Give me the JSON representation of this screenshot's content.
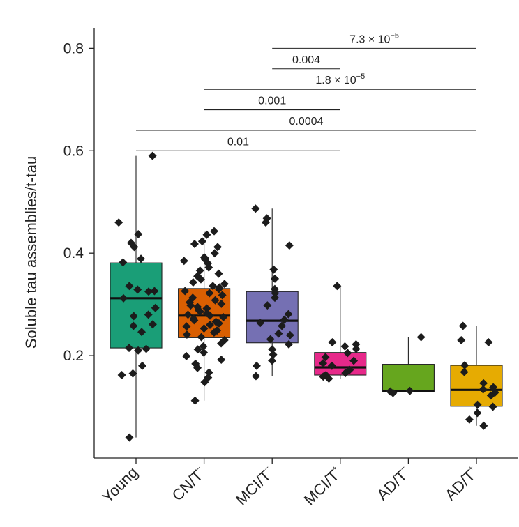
{
  "chart_data": {
    "type": "box",
    "title": "",
    "xlabel": "",
    "ylabel": "Soluble tau assemblies/t-tau",
    "ylim": [
      0,
      0.84
    ],
    "yticks": [
      0.2,
      0.4,
      0.6,
      0.8
    ],
    "ytick_labels": [
      "0.2",
      "0.4",
      "0.6",
      "0.8"
    ],
    "grid": false,
    "legend": "none",
    "categories": [
      {
        "label": "Young",
        "sup": ""
      },
      {
        "label": "CN/T",
        "sup": "−"
      },
      {
        "label": "MCI/T",
        "sup": "−"
      },
      {
        "label": "MCI/T",
        "sup": "+"
      },
      {
        "label": "AD/T",
        "sup": "−"
      },
      {
        "label": "AD/T",
        "sup": "+"
      }
    ],
    "colors": [
      "#1a9e77",
      "#d95f02",
      "#7570b3",
      "#e7298a",
      "#66a61e",
      "#e6ab02"
    ],
    "boxes": [
      {
        "q1": 0.215,
        "median": 0.312,
        "q3": 0.381,
        "whisker_low": 0.04,
        "whisker_high": 0.59
      },
      {
        "q1": 0.235,
        "median": 0.278,
        "q3": 0.331,
        "whisker_low": 0.112,
        "whisker_high": 0.443
      },
      {
        "q1": 0.225,
        "median": 0.268,
        "q3": 0.325,
        "whisker_low": 0.16,
        "whisker_high": 0.487
      },
      {
        "q1": 0.162,
        "median": 0.177,
        "q3": 0.206,
        "whisker_low": 0.155,
        "whisker_high": 0.336
      },
      {
        "q1": 0.13,
        "median": 0.131,
        "q3": 0.183,
        "whisker_low": 0.127,
        "whisker_high": 0.236
      },
      {
        "q1": 0.101,
        "median": 0.133,
        "q3": 0.181,
        "whisker_low": 0.063,
        "whisker_high": 0.258
      }
    ],
    "points": [
      [
        0.59,
        0.46,
        0.437,
        0.42,
        0.412,
        0.389,
        0.382,
        0.336,
        0.329,
        0.326,
        0.325,
        0.312,
        0.293,
        0.28,
        0.277,
        0.261,
        0.258,
        0.246,
        0.215,
        0.213,
        0.21,
        0.18,
        0.165,
        0.162,
        0.04
      ],
      [
        0.443,
        0.436,
        0.423,
        0.418,
        0.412,
        0.4,
        0.392,
        0.39,
        0.388,
        0.385,
        0.38,
        0.372,
        0.366,
        0.36,
        0.355,
        0.349,
        0.343,
        0.34,
        0.336,
        0.333,
        0.33,
        0.326,
        0.322,
        0.318,
        0.313,
        0.308,
        0.304,
        0.301,
        0.298,
        0.295,
        0.292,
        0.289,
        0.286,
        0.283,
        0.28,
        0.278,
        0.275,
        0.272,
        0.269,
        0.266,
        0.263,
        0.26,
        0.257,
        0.253,
        0.249,
        0.245,
        0.241,
        0.236,
        0.23,
        0.224,
        0.218,
        0.212,
        0.206,
        0.199,
        0.192,
        0.184,
        0.176,
        0.167,
        0.157,
        0.148,
        0.112
      ],
      [
        0.487,
        0.468,
        0.46,
        0.415,
        0.368,
        0.35,
        0.33,
        0.322,
        0.313,
        0.298,
        0.281,
        0.27,
        0.264,
        0.258,
        0.243,
        0.24,
        0.232,
        0.222,
        0.212,
        0.202,
        0.19,
        0.18,
        0.16
      ],
      [
        0.336,
        0.226,
        0.222,
        0.218,
        0.213,
        0.205,
        0.197,
        0.19,
        0.185,
        0.18,
        0.172,
        0.166,
        0.162,
        0.159,
        0.155
      ],
      [
        0.236,
        0.131,
        0.13,
        0.127
      ],
      [
        0.258,
        0.23,
        0.226,
        0.181,
        0.168,
        0.146,
        0.138,
        0.134,
        0.128,
        0.122,
        0.104,
        0.1,
        0.088,
        0.075,
        0.063
      ]
    ],
    "significance": [
      {
        "from": 0,
        "to": 3,
        "y": 0.6,
        "label": "0.01"
      },
      {
        "from": 0,
        "to": 5,
        "y": 0.64,
        "label": "0.0004"
      },
      {
        "from": 1,
        "to": 3,
        "y": 0.68,
        "label": "0.001"
      },
      {
        "from": 1,
        "to": 5,
        "y": 0.72,
        "label": "1.8 × 10",
        "exp": "−5"
      },
      {
        "from": 2,
        "to": 3,
        "y": 0.76,
        "label": "0.004"
      },
      {
        "from": 2,
        "to": 5,
        "y": 0.8,
        "label": "7.3 × 10",
        "exp": "−5"
      }
    ]
  }
}
